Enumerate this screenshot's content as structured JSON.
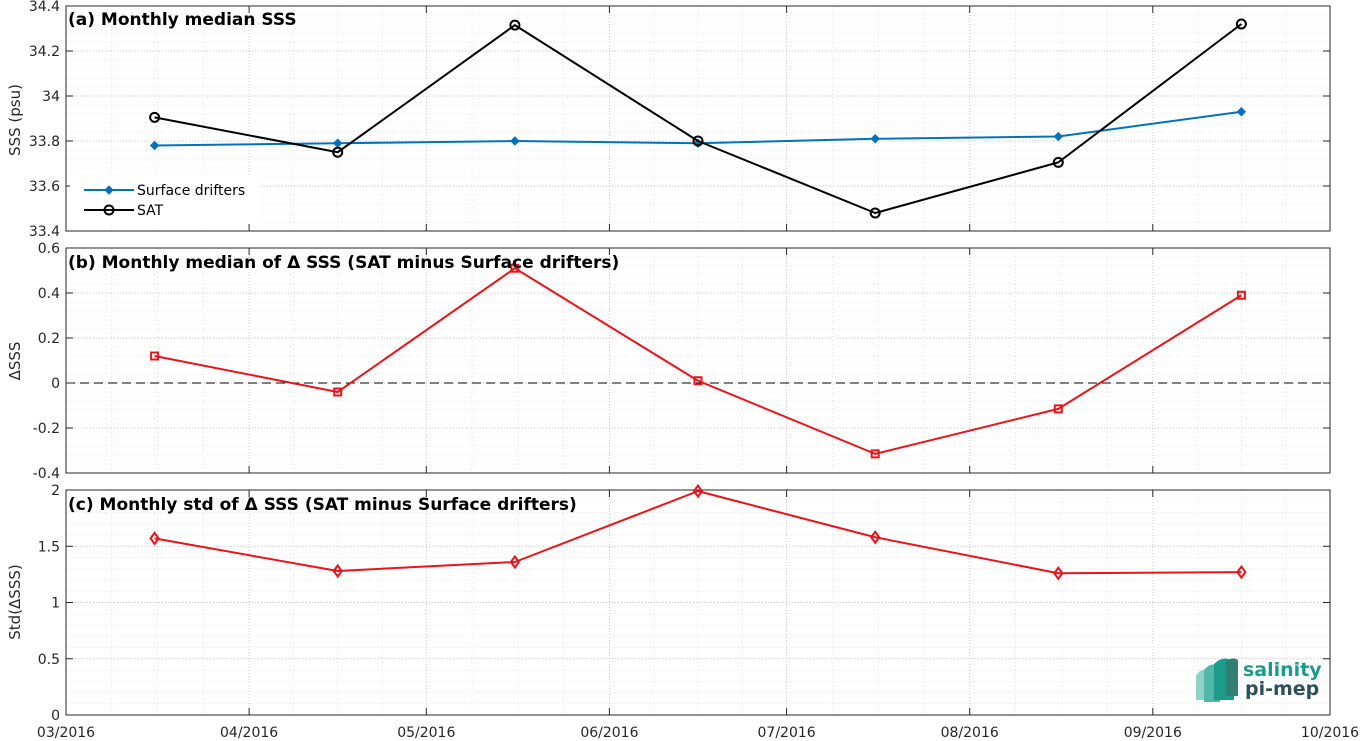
{
  "colors": {
    "drifters": "#0072bd",
    "sat": "#000000",
    "delta": "#e8141b",
    "logo_teal": "#1d9a8a",
    "logo_dark": "#2f4f5a"
  },
  "x_ticks": [
    "03/2016",
    "04/2016",
    "05/2016",
    "06/2016",
    "07/2016",
    "08/2016",
    "09/2016",
    "10/2016"
  ],
  "logo": {
    "line1": "salinity",
    "line2": "pi-mep"
  },
  "chart_data": [
    {
      "type": "line",
      "title": "(a) Monthly median SSS",
      "ylabel": "SSS (psu)",
      "ylim": [
        33.4,
        34.4
      ],
      "yticks": [
        "33.4",
        "33.6",
        "33.8",
        "34",
        "34.2",
        "34.4"
      ],
      "xlim": [
        "2016-03-01",
        "2016-10-01"
      ],
      "grid": true,
      "legend_position": "bottom-left",
      "x": [
        "2016-03-16",
        "2016-04-16",
        "2016-05-16",
        "2016-06-16",
        "2016-07-16",
        "2016-08-16",
        "2016-09-16"
      ],
      "series": [
        {
          "name": "Surface drifters",
          "marker": "diamond",
          "values": [
            33.78,
            33.79,
            33.8,
            33.79,
            33.81,
            33.82,
            33.93
          ]
        },
        {
          "name": "SAT",
          "marker": "circle",
          "values": [
            33.905,
            33.75,
            34.315,
            33.8,
            33.48,
            33.705,
            34.32
          ]
        }
      ]
    },
    {
      "type": "line",
      "title": "(b) Monthly median of Δ SSS (SAT minus Surface drifters)",
      "ylabel": "ΔSSS",
      "ylim": [
        -0.4,
        0.6
      ],
      "yticks": [
        "-0.4",
        "-0.2",
        "0",
        "0.2",
        "0.4",
        "0.6"
      ],
      "xlim": [
        "2016-03-01",
        "2016-10-01"
      ],
      "grid": true,
      "zero_line": true,
      "x": [
        "2016-03-16",
        "2016-04-16",
        "2016-05-16",
        "2016-06-16",
        "2016-07-16",
        "2016-08-16",
        "2016-09-16"
      ],
      "series": [
        {
          "marker": "square",
          "values": [
            0.12,
            -0.04,
            0.51,
            0.01,
            -0.315,
            -0.115,
            0.39
          ]
        }
      ]
    },
    {
      "type": "line",
      "title": "(c) Monthly std of Δ SSS (SAT minus Surface drifters)",
      "ylabel": "Std(ΔSSS)",
      "ylim": [
        0,
        2
      ],
      "yticks": [
        "0",
        "0.5",
        "1",
        "1.5",
        "2"
      ],
      "xlim": [
        "2016-03-01",
        "2016-10-01"
      ],
      "grid": true,
      "x": [
        "2016-03-16",
        "2016-04-16",
        "2016-05-16",
        "2016-06-16",
        "2016-07-16",
        "2016-08-16",
        "2016-09-16"
      ],
      "series": [
        {
          "marker": "diamond",
          "values": [
            1.57,
            1.28,
            1.36,
            1.99,
            1.58,
            1.26,
            1.27
          ]
        }
      ]
    }
  ]
}
